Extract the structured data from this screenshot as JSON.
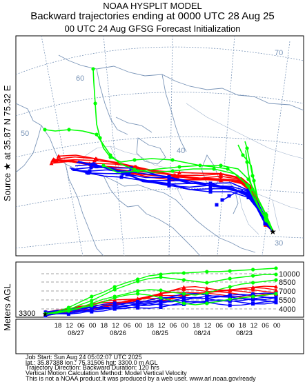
{
  "header": {
    "line1": "NOAA HYSPLIT MODEL",
    "line2": "Backward trajectories ending at 0000 UTC 28 Aug 25",
    "line3": "00 UTC 24 Aug    GFSG  Forecast Initialization"
  },
  "map": {
    "y_label": "Source ★ at   35.87 N   75.32 E",
    "graticule_labels": [
      "70",
      "60",
      "50",
      "40",
      "30"
    ],
    "source_marker": "star"
  },
  "vertical": {
    "y_label": "Meters AGL",
    "start_height": "3300",
    "levels": [
      "10000",
      "8500",
      "7000",
      "5500",
      "4000"
    ],
    "hour_ticks": [
      "18",
      "12",
      "06",
      "00",
      "18",
      "12",
      "06",
      "00",
      "18",
      "12",
      "06",
      "00",
      "18",
      "12",
      "06",
      "00",
      "18",
      "12",
      "06",
      "00"
    ],
    "date_labels": [
      "08/27",
      "08/26",
      "08/25",
      "08/24",
      "08/23"
    ]
  },
  "footer": {
    "l1": "Job Start: Sun Aug 24 05:02:07 UTC 2025",
    "l2": "lat.: 35.87388   lon.: 75.31506   hgt: 3300.0 m AGL",
    "l3": "Trajectory Direction: Backward        Duration: 120 hrs",
    "l4": "Vertical Motion Calculation Method: Model Vertical Velocity",
    "l5": "This is not a NOAA product.It was produced by a web user. www.arl.noaa.gov/ready"
  },
  "colors": {
    "red": "#ff0000",
    "blue": "#0000ff",
    "green": "#00ff00",
    "map": "#7a95b8"
  }
}
